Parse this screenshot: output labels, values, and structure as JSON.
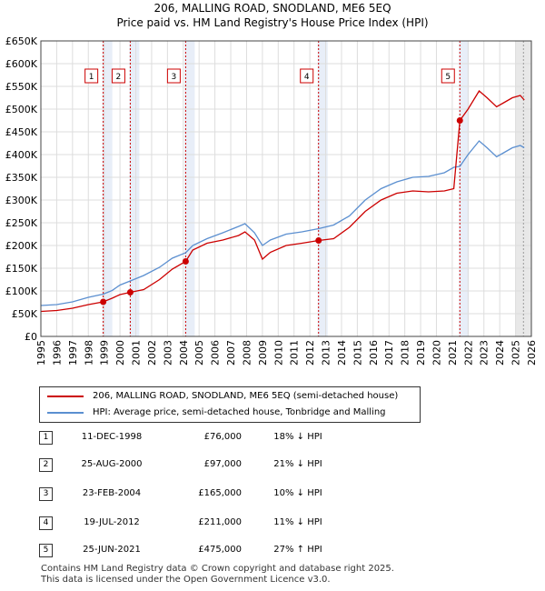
{
  "chart_data": {
    "type": "line",
    "title": "206, MALLING ROAD, SNODLAND, ME6 5EQ",
    "subtitle": "Price paid vs. HM Land Registry's House Price Index (HPI)",
    "xlim": [
      1995,
      2026
    ],
    "ylim": [
      0,
      650000
    ],
    "x_ticks": [
      "1995",
      "1996",
      "1997",
      "1998",
      "1999",
      "2000",
      "2001",
      "2002",
      "2003",
      "2004",
      "2005",
      "2006",
      "2007",
      "2008",
      "2009",
      "2010",
      "2011",
      "2012",
      "2013",
      "2014",
      "2015",
      "2016",
      "2017",
      "2018",
      "2019",
      "2020",
      "2021",
      "2022",
      "2023",
      "2024",
      "2025",
      "2026"
    ],
    "y_ticks": [
      {
        "value": 0,
        "label": "£0"
      },
      {
        "value": 50000,
        "label": "£50K"
      },
      {
        "value": 100000,
        "label": "£100K"
      },
      {
        "value": 150000,
        "label": "£150K"
      },
      {
        "value": 200000,
        "label": "£200K"
      },
      {
        "value": 250000,
        "label": "£250K"
      },
      {
        "value": 300000,
        "label": "£300K"
      },
      {
        "value": 350000,
        "label": "£350K"
      },
      {
        "value": 400000,
        "label": "£400K"
      },
      {
        "value": 450000,
        "label": "£450K"
      },
      {
        "value": 500000,
        "label": "£500K"
      },
      {
        "value": 550000,
        "label": "£550K"
      },
      {
        "value": 600000,
        "label": "£600K"
      },
      {
        "value": 650000,
        "label": "£650K"
      }
    ],
    "series": [
      {
        "name": "206, MALLING ROAD, SNODLAND, ME6 5EQ (semi-detached house)",
        "color": "#cc0000",
        "points": [
          [
            1995.0,
            55000
          ],
          [
            1996.0,
            57000
          ],
          [
            1997.0,
            62000
          ],
          [
            1998.0,
            70000
          ],
          [
            1998.94,
            76000
          ],
          [
            1999.5,
            84000
          ],
          [
            2000.0,
            92000
          ],
          [
            2000.65,
            97000
          ],
          [
            2001.5,
            103000
          ],
          [
            2002.5,
            125000
          ],
          [
            2003.3,
            148000
          ],
          [
            2004.15,
            165000
          ],
          [
            2004.6,
            190000
          ],
          [
            2005.5,
            205000
          ],
          [
            2006.5,
            212000
          ],
          [
            2007.5,
            222000
          ],
          [
            2007.9,
            230000
          ],
          [
            2008.5,
            212000
          ],
          [
            2009.0,
            170000
          ],
          [
            2009.5,
            185000
          ],
          [
            2010.5,
            200000
          ],
          [
            2011.5,
            205000
          ],
          [
            2012.55,
            211000
          ],
          [
            2013.5,
            215000
          ],
          [
            2014.5,
            240000
          ],
          [
            2015.5,
            275000
          ],
          [
            2016.5,
            300000
          ],
          [
            2017.5,
            315000
          ],
          [
            2018.5,
            320000
          ],
          [
            2019.5,
            318000
          ],
          [
            2020.5,
            320000
          ],
          [
            2021.1,
            325000
          ],
          [
            2021.48,
            475000
          ],
          [
            2022.0,
            500000
          ],
          [
            2022.7,
            540000
          ],
          [
            2023.2,
            525000
          ],
          [
            2023.8,
            505000
          ],
          [
            2024.3,
            515000
          ],
          [
            2024.8,
            525000
          ],
          [
            2025.3,
            530000
          ],
          [
            2025.55,
            520000
          ]
        ]
      },
      {
        "name": "HPI: Average price, semi-detached house, Tonbridge and Malling",
        "color": "#5b8fd0",
        "points": [
          [
            1995.0,
            68000
          ],
          [
            1996.0,
            70000
          ],
          [
            1997.0,
            76000
          ],
          [
            1998.0,
            86000
          ],
          [
            1998.94,
            93000
          ],
          [
            1999.5,
            101000
          ],
          [
            2000.0,
            113000
          ],
          [
            2000.65,
            122000
          ],
          [
            2001.5,
            134000
          ],
          [
            2002.5,
            152000
          ],
          [
            2003.3,
            172000
          ],
          [
            2004.15,
            184000
          ],
          [
            2004.6,
            200000
          ],
          [
            2005.5,
            215000
          ],
          [
            2006.5,
            228000
          ],
          [
            2007.5,
            242000
          ],
          [
            2007.9,
            248000
          ],
          [
            2008.5,
            228000
          ],
          [
            2009.0,
            200000
          ],
          [
            2009.5,
            212000
          ],
          [
            2010.5,
            225000
          ],
          [
            2011.5,
            230000
          ],
          [
            2012.55,
            237000
          ],
          [
            2013.5,
            245000
          ],
          [
            2014.5,
            265000
          ],
          [
            2015.5,
            300000
          ],
          [
            2016.5,
            325000
          ],
          [
            2017.5,
            340000
          ],
          [
            2018.5,
            350000
          ],
          [
            2019.5,
            352000
          ],
          [
            2020.5,
            360000
          ],
          [
            2021.1,
            372000
          ],
          [
            2021.48,
            374000
          ],
          [
            2022.0,
            400000
          ],
          [
            2022.7,
            430000
          ],
          [
            2023.2,
            415000
          ],
          [
            2023.8,
            395000
          ],
          [
            2024.3,
            405000
          ],
          [
            2024.8,
            415000
          ],
          [
            2025.3,
            420000
          ],
          [
            2025.55,
            415000
          ]
        ]
      }
    ],
    "sales": [
      {
        "n": "1",
        "x": 1998.94,
        "value": 76000,
        "date": "11-DEC-1998",
        "price": "£76,000",
        "hpi": "18% ↓ HPI"
      },
      {
        "n": "2",
        "x": 2000.65,
        "value": 97000,
        "date": "25-AUG-2000",
        "price": "£97,000",
        "hpi": "21% ↓ HPI"
      },
      {
        "n": "3",
        "x": 2004.15,
        "value": 165000,
        "date": "23-FEB-2004",
        "price": "£165,000",
        "hpi": "10% ↓ HPI"
      },
      {
        "n": "4",
        "x": 2012.55,
        "value": 211000,
        "date": "19-JUL-2012",
        "price": "£211,000",
        "hpi": "11% ↓ HPI"
      },
      {
        "n": "5",
        "x": 2021.48,
        "value": 475000,
        "date": "25-JUN-2021",
        "price": "£475,000",
        "hpi": "27% ↑ HPI"
      }
    ]
  },
  "legend": {
    "property": "206, MALLING ROAD, SNODLAND, ME6 5EQ (semi-detached house)",
    "hpi": "HPI: Average price, semi-detached house, Tonbridge and Malling"
  },
  "footer": {
    "line1": "Contains HM Land Registry data © Crown copyright and database right 2025.",
    "line2": "This data is licensed under the Open Government Licence v3.0."
  }
}
